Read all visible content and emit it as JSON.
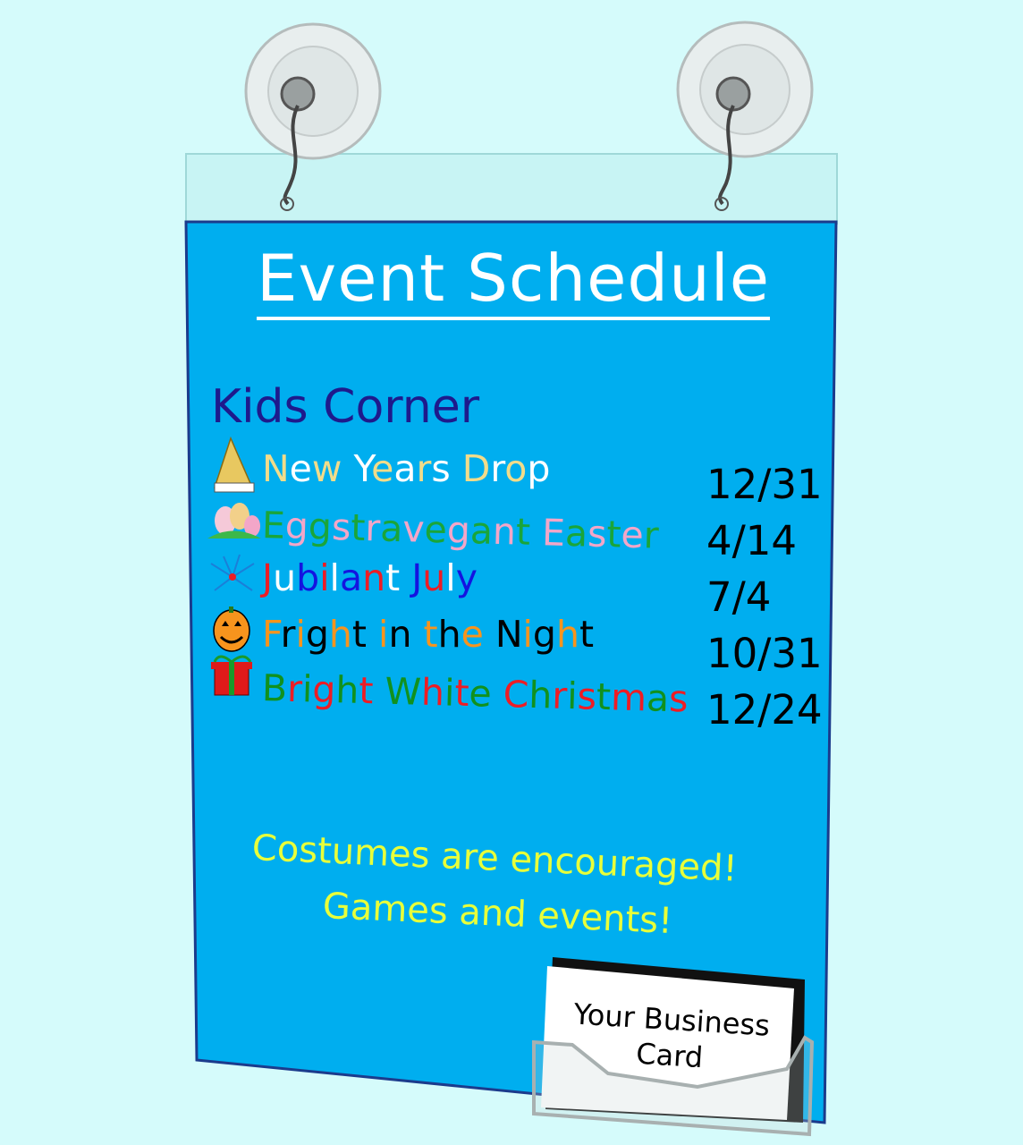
{
  "sign": {
    "title": "Event Schedule",
    "section": "Kids Corner",
    "events": [
      {
        "name": "New Years Drop",
        "date": "12/31",
        "icon": "party-hat-icon",
        "letter_colors": [
          "#f2dc8a",
          "#ffffff"
        ]
      },
      {
        "name": "Eggstravegant Easter",
        "date": "4/14",
        "icon": "easter-eggs-icon",
        "letter_colors": [
          "#1aa53a",
          "#f3a6c8"
        ]
      },
      {
        "name": "Jubilant July",
        "date": "7/4",
        "icon": "fireworks-icon",
        "letter_colors": [
          "#ee1c24",
          "#ffffff",
          "#1414e0"
        ]
      },
      {
        "name": "Fright in the Night",
        "date": "10/31",
        "icon": "jack-o-lantern-icon",
        "letter_colors": [
          "#f7941d",
          "#000000"
        ]
      },
      {
        "name": "Bright White Christmas",
        "date": "12/24",
        "icon": "gift-box-icon",
        "letter_colors": [
          "#11911e",
          "#ee1c24"
        ]
      }
    ],
    "footer_line1": "Costumes are encouraged!",
    "footer_line2": "Games and events!",
    "business_card": "Your Business Card"
  },
  "colors": {
    "background": "#d5fbfb",
    "sign": "#00aeef",
    "section": "#1e1a8c",
    "footer": "#e8ff3a"
  }
}
